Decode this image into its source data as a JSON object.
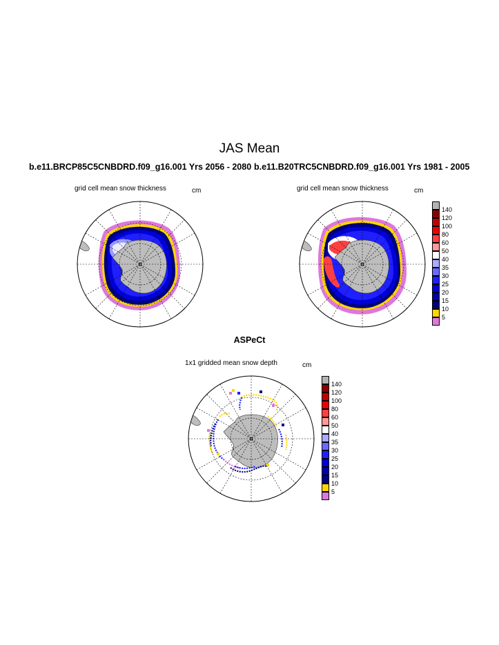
{
  "figure": {
    "title": "JAS Mean",
    "left_run": "b.e11.BRCP85C5CNBDRD.f09_g16.001  Yrs 2056 - 2080",
    "right_run": "b.e11.B20TRC5CNBDRD.f09_g16.001  Yrs 1981 - 2005",
    "obs_title": "ASPeCt"
  },
  "panels": {
    "left": {
      "label": "grid cell mean snow thickness",
      "units": "cm"
    },
    "right": {
      "label": "grid cell mean snow thickness",
      "units": "cm"
    },
    "bottom": {
      "label": "1x1 gridded mean snow depth",
      "units": "cm"
    }
  },
  "colorbar": {
    "labels": [
      "140",
      "120",
      "100",
      "80",
      "60",
      "50",
      "40",
      "35",
      "30",
      "25",
      "20",
      "15",
      "10",
      "5"
    ],
    "colors": [
      "#b3b3b3",
      "#8b0000",
      "#c00000",
      "#ee0000",
      "#ff4040",
      "#ff9999",
      "#ffffff",
      "#aaaaff",
      "#6a6aff",
      "#2020ff",
      "#0000d8",
      "#0000a8",
      "#000080",
      "#ffd700",
      "#dd77dd"
    ]
  }
}
